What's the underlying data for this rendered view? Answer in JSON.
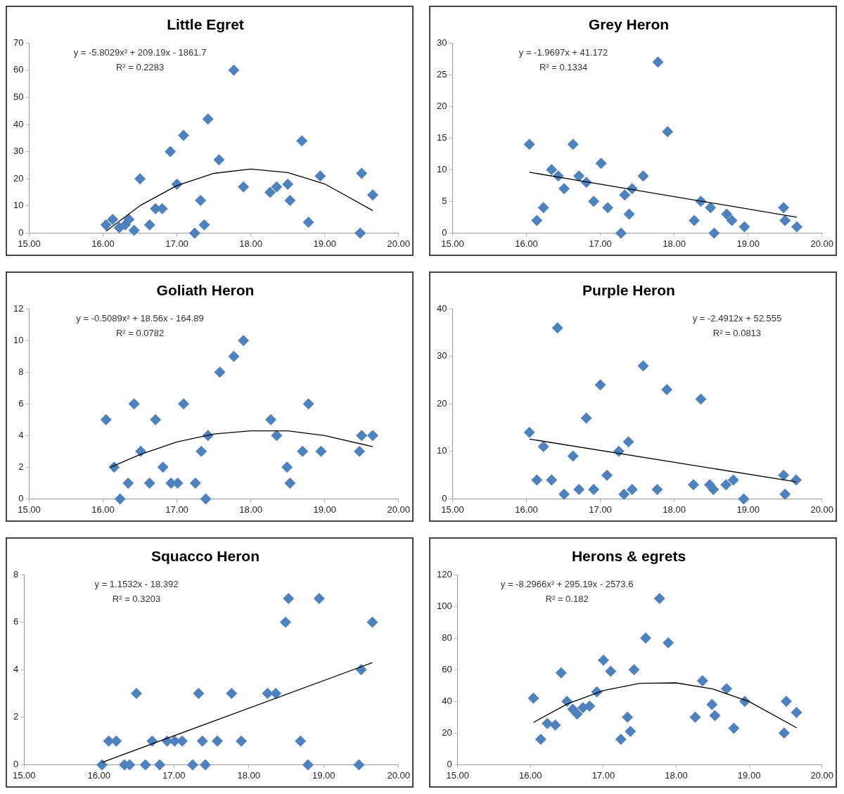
{
  "chart_data": [
    {
      "type": "scatter",
      "title": "Little Egret",
      "marker": "diamond",
      "legend": false,
      "grid": false,
      "xlim": [
        15,
        20
      ],
      "xticks": [
        {
          "value": 15,
          "label": "15.00"
        },
        {
          "value": 16,
          "label": "16.00"
        },
        {
          "value": 17,
          "label": "17.00"
        },
        {
          "value": 18,
          "label": "18.00"
        },
        {
          "value": 19,
          "label": "19.00"
        },
        {
          "value": 20,
          "label": "20.00"
        }
      ],
      "ylim": [
        0,
        70
      ],
      "yticks": [
        0,
        10,
        20,
        30,
        40,
        50,
        60,
        70
      ],
      "annotations": [
        "y = -5.8029x² + 209.19x - 1861.7",
        "R² = 0.2283"
      ],
      "series": [
        {
          "type": "scatter",
          "color": "#4f81bd",
          "x": [
            16.04,
            16.13,
            16.22,
            16.3,
            16.35,
            16.42,
            16.5,
            16.63,
            16.71,
            16.8,
            16.91,
            17.0,
            17.09,
            17.24,
            17.32,
            17.37,
            17.42,
            17.57,
            17.77,
            17.9,
            18.26,
            18.35,
            18.5,
            18.53,
            18.69,
            18.78,
            18.94,
            19.48,
            19.5,
            19.65
          ],
          "values": [
            3,
            5,
            2,
            3,
            5,
            1,
            20,
            3,
            9,
            9,
            30,
            18,
            36,
            0,
            12,
            3,
            42,
            27,
            60,
            17,
            15,
            17,
            18,
            12,
            34,
            4,
            21,
            0,
            22,
            14
          ]
        },
        {
          "type": "line",
          "marker": "none",
          "color": "#000000",
          "x": [
            16.04,
            16.5,
            17,
            17.5,
            18,
            18.5,
            19,
            19.65
          ],
          "values": [
            0.7,
            10.1,
            17.5,
            22.0,
            23.6,
            22.3,
            18.1,
            8.3
          ]
        }
      ]
    },
    {
      "type": "scatter",
      "title": "Grey Heron",
      "marker": "diamond",
      "legend": false,
      "grid": false,
      "xlim": [
        15,
        20
      ],
      "xticks": [
        {
          "value": 15,
          "label": "15.00"
        },
        {
          "value": 16,
          "label": "16.00"
        },
        {
          "value": 17,
          "label": "17.00"
        },
        {
          "value": 18,
          "label": "18.00"
        },
        {
          "value": 19,
          "label": "19.00"
        },
        {
          "value": 20,
          "label": "20.00"
        }
      ],
      "ylim": [
        0,
        30
      ],
      "yticks": [
        0,
        5,
        10,
        15,
        20,
        25,
        30
      ],
      "annotations": [
        "y = -1.9697x + 41.172",
        "R² = 0.1334"
      ],
      "series": [
        {
          "type": "scatter",
          "color": "#4f81bd",
          "x": [
            16.04,
            16.14,
            16.23,
            16.34,
            16.43,
            16.51,
            16.63,
            16.71,
            16.81,
            16.91,
            17.01,
            17.1,
            17.28,
            17.33,
            17.39,
            17.43,
            17.58,
            17.78,
            17.91,
            18.27,
            18.36,
            18.49,
            18.54,
            18.71,
            18.78,
            18.95,
            19.48,
            19.5,
            19.66
          ],
          "values": [
            14,
            2,
            4,
            10,
            9,
            7,
            14,
            9,
            8,
            5,
            11,
            4,
            0,
            6,
            3,
            7,
            9,
            27,
            16,
            2,
            5,
            4,
            0,
            3,
            2,
            1,
            4,
            2,
            1
          ]
        },
        {
          "type": "line",
          "marker": "none",
          "color": "#000000",
          "x": [
            16.04,
            19.66
          ],
          "values": [
            9.6,
            2.5
          ]
        }
      ]
    },
    {
      "type": "scatter",
      "title": "Goliath Heron",
      "marker": "diamond",
      "legend": false,
      "grid": false,
      "xlim": [
        15,
        20
      ],
      "xticks": [
        {
          "value": 15,
          "label": "15.00"
        },
        {
          "value": 16,
          "label": "16.00"
        },
        {
          "value": 17,
          "label": "17.00"
        },
        {
          "value": 18,
          "label": "18.00"
        },
        {
          "value": 19,
          "label": "19.00"
        },
        {
          "value": 20,
          "label": "20.00"
        }
      ],
      "ylim": [
        0,
        12
      ],
      "yticks": [
        0,
        2,
        4,
        6,
        8,
        10,
        12
      ],
      "annotations": [
        "y = -0.5089x² + 18.56x - 164.89",
        "R² = 0.0782"
      ],
      "series": [
        {
          "type": "scatter",
          "color": "#4f81bd",
          "x": [
            16.04,
            16.15,
            16.23,
            16.34,
            16.42,
            16.51,
            16.63,
            16.71,
            16.81,
            16.92,
            17.01,
            17.09,
            17.25,
            17.33,
            17.39,
            17.42,
            17.58,
            17.77,
            17.9,
            18.27,
            18.35,
            18.49,
            18.53,
            18.7,
            18.78,
            18.95,
            19.47,
            19.5,
            19.65
          ],
          "values": [
            5,
            2,
            0,
            1,
            6,
            3,
            1,
            5,
            2,
            1,
            1,
            6,
            1,
            3,
            0,
            4,
            8,
            9,
            10,
            5,
            4,
            2,
            1,
            3,
            6,
            3,
            3,
            4,
            4
          ]
        },
        {
          "type": "line",
          "marker": "none",
          "color": "#000000",
          "x": [
            16.1,
            16.5,
            17,
            17.5,
            18,
            18.5,
            19,
            19.65
          ],
          "values": [
            2.0,
            2.8,
            3.6,
            4.1,
            4.3,
            4.3,
            4.0,
            3.3
          ]
        }
      ]
    },
    {
      "type": "scatter",
      "title": "Purple Heron",
      "marker": "diamond",
      "legend": false,
      "grid": false,
      "xlim": [
        15,
        20
      ],
      "xticks": [
        {
          "value": 15,
          "label": "15.00"
        },
        {
          "value": 16,
          "label": "16.00"
        },
        {
          "value": 17,
          "label": "17.00"
        },
        {
          "value": 18,
          "label": "18.00"
        },
        {
          "value": 19,
          "label": "19.00"
        },
        {
          "value": 20,
          "label": "20.00"
        }
      ],
      "ylim": [
        0,
        40
      ],
      "yticks": [
        0,
        10,
        20,
        30,
        40
      ],
      "annotations": [
        "y = -2.4912x + 52.555",
        "R² = 0.0813"
      ],
      "series": [
        {
          "type": "scatter",
          "color": "#4f81bd",
          "x": [
            16.04,
            16.14,
            16.23,
            16.34,
            16.42,
            16.51,
            16.63,
            16.71,
            16.81,
            16.91,
            17.0,
            17.09,
            17.25,
            17.32,
            17.38,
            17.43,
            17.58,
            17.77,
            17.9,
            18.26,
            18.36,
            18.48,
            18.53,
            18.7,
            18.8,
            18.94,
            19.48,
            19.5,
            19.65
          ],
          "values": [
            14,
            4,
            11,
            4,
            36,
            1,
            9,
            2,
            17,
            2,
            24,
            5,
            10,
            1,
            12,
            2,
            28,
            2,
            23,
            3,
            21,
            3,
            2,
            3,
            4,
            0,
            5,
            1,
            4
          ]
        },
        {
          "type": "line",
          "marker": "none",
          "color": "#000000",
          "x": [
            16.04,
            19.65
          ],
          "values": [
            12.6,
            3.6
          ]
        }
      ]
    },
    {
      "type": "scatter",
      "title": "Squacco Heron",
      "marker": "diamond",
      "legend": false,
      "grid": false,
      "xlim": [
        15,
        20
      ],
      "xticks": [
        {
          "value": 15,
          "label": "15.00"
        },
        {
          "value": 16,
          "label": "16.00"
        },
        {
          "value": 17,
          "label": "17.00"
        },
        {
          "value": 18,
          "label": "18.00"
        },
        {
          "value": 19,
          "label": "19.00"
        },
        {
          "value": 20,
          "label": "20.00"
        }
      ],
      "ylim": [
        0,
        8
      ],
      "yticks": [
        0,
        2,
        4,
        6,
        8
      ],
      "annotations": [
        "y = 1.1532x - 18.392",
        "R² = 0.3203"
      ],
      "series": [
        {
          "type": "scatter",
          "color": "#4f81bd",
          "x": [
            16.04,
            16.13,
            16.23,
            16.34,
            16.41,
            16.5,
            16.62,
            16.71,
            16.81,
            16.91,
            17.01,
            17.11,
            17.25,
            17.33,
            17.38,
            17.42,
            17.58,
            17.77,
            17.9,
            18.25,
            18.36,
            18.49,
            18.53,
            18.69,
            18.79,
            18.94,
            19.47,
            19.5,
            19.65
          ],
          "values": [
            0,
            1,
            1,
            0,
            0,
            3,
            0,
            1,
            0,
            1,
            1,
            1,
            0,
            3,
            1,
            0,
            1,
            3,
            1,
            3,
            3,
            6,
            7,
            1,
            0,
            7,
            0,
            4,
            6
          ]
        },
        {
          "type": "line",
          "marker": "none",
          "color": "#000000",
          "x": [
            16.04,
            19.65
          ],
          "values": [
            0.1,
            4.3
          ]
        }
      ]
    },
    {
      "type": "scatter",
      "title": "Herons & egrets",
      "marker": "diamond",
      "legend": false,
      "grid": false,
      "xlim": [
        15,
        20
      ],
      "xticks": [
        {
          "value": 15,
          "label": "15.00"
        },
        {
          "value": 16,
          "label": "16.00"
        },
        {
          "value": 17,
          "label": "17.00"
        },
        {
          "value": 18,
          "label": "18.00"
        },
        {
          "value": 19,
          "label": "19.00"
        },
        {
          "value": 20,
          "label": "20.00"
        }
      ],
      "ylim": [
        0,
        120
      ],
      "yticks": [
        0,
        20,
        40,
        60,
        80,
        100,
        120
      ],
      "annotations": [
        "y = -8.2966x² + 295.19x - 2573.6",
        "R² = 0.182"
      ],
      "series": [
        {
          "type": "scatter",
          "color": "#4f81bd",
          "x": [
            16.04,
            16.14,
            16.23,
            16.34,
            16.42,
            16.5,
            16.58,
            16.64,
            16.72,
            16.81,
            16.91,
            17.0,
            17.1,
            17.24,
            17.33,
            17.37,
            17.42,
            17.58,
            17.77,
            17.89,
            18.26,
            18.36,
            18.49,
            18.53,
            18.69,
            18.79,
            18.94,
            19.48,
            19.51,
            19.65
          ],
          "values": [
            42,
            16,
            26,
            25,
            58,
            40,
            35,
            32,
            36,
            37,
            46,
            66,
            59,
            16,
            30,
            21,
            60,
            80,
            105,
            77,
            30,
            53,
            38,
            31,
            48,
            23,
            40,
            20,
            40,
            33
          ]
        },
        {
          "type": "line",
          "marker": "none",
          "color": "#000000",
          "x": [
            16.04,
            16.5,
            17,
            17.5,
            18,
            18.5,
            19,
            19.65
          ],
          "values": [
            26.7,
            38.3,
            46.9,
            51.4,
            51.7,
            47.9,
            39.9,
            23.4
          ]
        }
      ]
    }
  ]
}
